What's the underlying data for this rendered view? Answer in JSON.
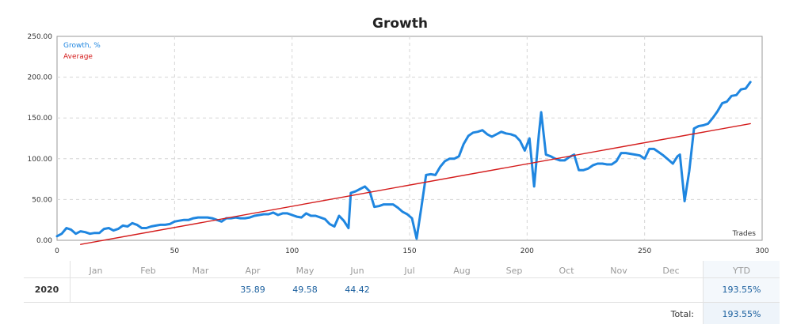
{
  "chart_data": {
    "type": "line",
    "title": "Growth",
    "xlabel": "Trades",
    "ylabel": "",
    "xlim": [
      0,
      300
    ],
    "ylim": [
      0,
      250
    ],
    "x_ticks": [
      "0",
      "50",
      "100",
      "150",
      "200",
      "250",
      "300"
    ],
    "y_ticks": [
      "0.00",
      "50.00",
      "100.00",
      "150.00",
      "200.00",
      "250.00"
    ],
    "grid": true,
    "legend_position": "top-left",
    "series": [
      {
        "name": "Growth, %",
        "color": "#1f86e0",
        "points": [
          [
            0,
            5
          ],
          [
            2,
            8
          ],
          [
            4,
            15
          ],
          [
            6,
            13
          ],
          [
            8,
            8
          ],
          [
            10,
            11
          ],
          [
            12,
            10
          ],
          [
            14,
            8
          ],
          [
            16,
            9
          ],
          [
            18,
            9
          ],
          [
            20,
            14
          ],
          [
            22,
            15
          ],
          [
            24,
            12
          ],
          [
            26,
            14
          ],
          [
            28,
            18
          ],
          [
            30,
            17
          ],
          [
            32,
            21
          ],
          [
            34,
            19
          ],
          [
            36,
            15
          ],
          [
            38,
            15
          ],
          [
            40,
            17
          ],
          [
            42,
            18
          ],
          [
            44,
            19
          ],
          [
            46,
            19
          ],
          [
            48,
            20
          ],
          [
            50,
            23
          ],
          [
            52,
            24
          ],
          [
            54,
            25
          ],
          [
            56,
            25
          ],
          [
            58,
            27
          ],
          [
            60,
            28
          ],
          [
            62,
            28
          ],
          [
            64,
            28
          ],
          [
            66,
            27
          ],
          [
            68,
            25
          ],
          [
            70,
            23
          ],
          [
            72,
            27
          ],
          [
            74,
            27
          ],
          [
            76,
            28
          ],
          [
            78,
            27
          ],
          [
            80,
            27
          ],
          [
            82,
            28
          ],
          [
            84,
            30
          ],
          [
            86,
            31
          ],
          [
            88,
            32
          ],
          [
            90,
            32
          ],
          [
            92,
            34
          ],
          [
            94,
            31
          ],
          [
            96,
            33
          ],
          [
            98,
            33
          ],
          [
            100,
            31
          ],
          [
            102,
            29
          ],
          [
            104,
            28
          ],
          [
            106,
            33
          ],
          [
            108,
            30
          ],
          [
            110,
            30
          ],
          [
            112,
            28
          ],
          [
            114,
            26
          ],
          [
            116,
            20
          ],
          [
            118,
            17
          ],
          [
            120,
            30
          ],
          [
            122,
            24
          ],
          [
            124,
            15
          ],
          [
            125,
            58
          ],
          [
            127,
            60
          ],
          [
            129,
            63
          ],
          [
            131,
            66
          ],
          [
            133,
            60
          ],
          [
            135,
            41
          ],
          [
            137,
            42
          ],
          [
            139,
            44
          ],
          [
            141,
            44
          ],
          [
            143,
            44
          ],
          [
            145,
            40
          ],
          [
            147,
            35
          ],
          [
            149,
            32
          ],
          [
            151,
            27
          ],
          [
            153,
            2
          ],
          [
            155,
            40
          ],
          [
            157,
            80
          ],
          [
            159,
            81
          ],
          [
            161,
            80
          ],
          [
            163,
            90
          ],
          [
            165,
            97
          ],
          [
            167,
            100
          ],
          [
            169,
            100
          ],
          [
            171,
            103
          ],
          [
            173,
            118
          ],
          [
            175,
            128
          ],
          [
            177,
            132
          ],
          [
            179,
            133
          ],
          [
            181,
            135
          ],
          [
            183,
            130
          ],
          [
            185,
            127
          ],
          [
            187,
            130
          ],
          [
            189,
            133
          ],
          [
            191,
            131
          ],
          [
            193,
            130
          ],
          [
            195,
            128
          ],
          [
            197,
            122
          ],
          [
            199,
            110
          ],
          [
            201,
            125
          ],
          [
            203,
            66
          ],
          [
            205,
            130
          ],
          [
            206,
            157
          ],
          [
            208,
            105
          ],
          [
            210,
            103
          ],
          [
            212,
            100
          ],
          [
            214,
            98
          ],
          [
            216,
            98
          ],
          [
            218,
            102
          ],
          [
            220,
            105
          ],
          [
            222,
            86
          ],
          [
            224,
            86
          ],
          [
            226,
            88
          ],
          [
            228,
            92
          ],
          [
            230,
            94
          ],
          [
            232,
            94
          ],
          [
            234,
            93
          ],
          [
            236,
            93
          ],
          [
            238,
            97
          ],
          [
            240,
            107
          ],
          [
            242,
            107
          ],
          [
            244,
            106
          ],
          [
            246,
            105
          ],
          [
            248,
            104
          ],
          [
            250,
            100
          ],
          [
            252,
            112
          ],
          [
            254,
            112
          ],
          [
            256,
            108
          ],
          [
            258,
            104
          ],
          [
            260,
            99
          ],
          [
            262,
            94
          ],
          [
            264,
            103
          ],
          [
            265,
            105
          ],
          [
            267,
            48
          ],
          [
            269,
            85
          ],
          [
            271,
            137
          ],
          [
            273,
            140
          ],
          [
            275,
            141
          ],
          [
            277,
            143
          ],
          [
            279,
            150
          ],
          [
            281,
            158
          ],
          [
            283,
            168
          ],
          [
            285,
            170
          ],
          [
            287,
            177
          ],
          [
            289,
            178
          ],
          [
            291,
            185
          ],
          [
            293,
            186
          ],
          [
            295,
            194
          ]
        ]
      },
      {
        "name": "Average",
        "color": "#d41c1c",
        "points": [
          [
            10,
            -5
          ],
          [
            295,
            143
          ]
        ]
      }
    ]
  },
  "table": {
    "months": [
      "Jan",
      "Feb",
      "Mar",
      "Apr",
      "May",
      "Jun",
      "Jul",
      "Aug",
      "Sep",
      "Oct",
      "Nov",
      "Dec"
    ],
    "ytd_header": "YTD",
    "year": "2020",
    "values": [
      "",
      "",
      "",
      "35.89",
      "49.58",
      "44.42",
      "",
      "",
      "",
      "",
      "",
      ""
    ],
    "ytd_value": "193.55%",
    "total_label": "Total:",
    "total_value": "193.55%"
  },
  "colors": {
    "grid": "#d5d5d5",
    "axis": "#9a9a9a",
    "value_text": "#1a5f9e"
  }
}
